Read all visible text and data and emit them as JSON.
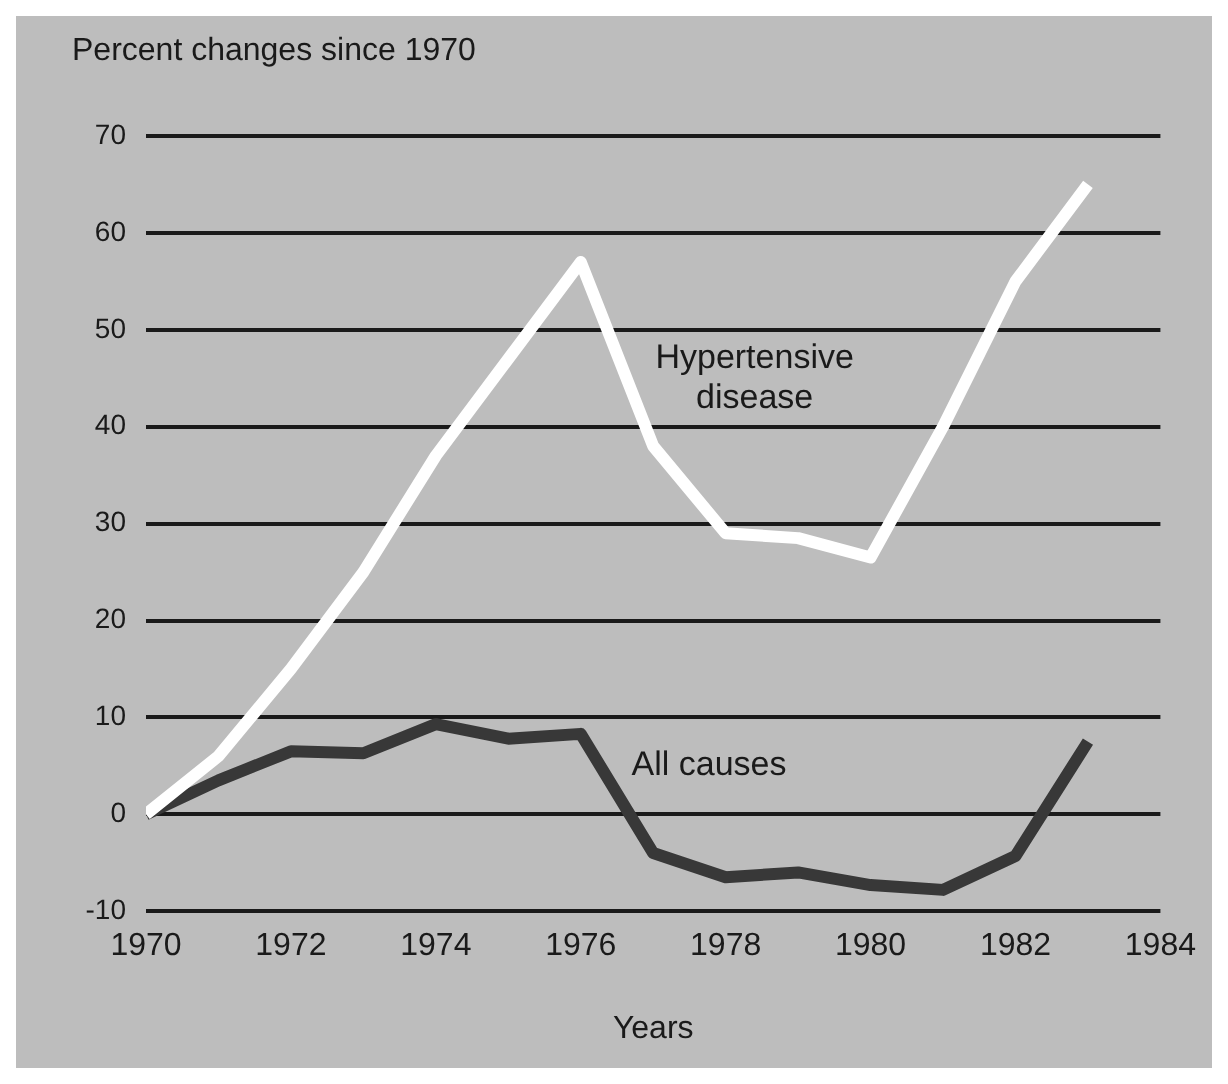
{
  "chart_data": {
    "type": "line",
    "ylabel": "Percent changes since 1970",
    "xlabel": "Years",
    "x": [
      1970,
      1971,
      1972,
      1973,
      1974,
      1975,
      1976,
      1977,
      1978,
      1979,
      1980,
      1981,
      1982,
      1983
    ],
    "series": [
      {
        "name": "Hypertensive disease",
        "color": "#ffffff",
        "values": [
          0,
          6,
          15,
          25,
          37,
          47,
          57,
          38,
          29,
          28.5,
          26.5,
          40,
          55,
          65
        ]
      },
      {
        "name": "All causes",
        "color": "#383838",
        "values": [
          0,
          3.5,
          6.5,
          6.3,
          9.3,
          7.8,
          8.3,
          -4,
          -6.5,
          -6,
          -7.3,
          -7.8,
          -4.3,
          7.5
        ]
      }
    ],
    "xlim": [
      1970,
      1984
    ],
    "xticks": [
      1970,
      1972,
      1974,
      1976,
      1978,
      1980,
      1982,
      1984
    ],
    "ylim": [
      -10,
      70
    ],
    "yticks": [
      -10,
      0,
      10,
      20,
      30,
      40,
      50,
      60,
      70
    ],
    "grid": "y",
    "legend": false,
    "marker": "none",
    "line_style": "solid"
  }
}
